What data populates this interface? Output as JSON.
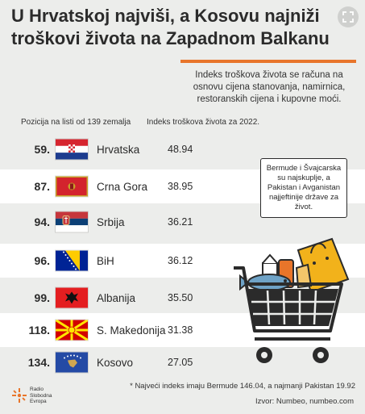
{
  "header": {
    "title": "U Hrvatskoj najviši, a Kosovu najniži troškovi života na Zapadnom Balkanu",
    "description": "Indeks troškova života se računa na osnovu cijena stanovanja, namirnica, restoranskih cijena i kupovne moći.",
    "expand_icon": "expand-icon",
    "accent_color": "#e8752a"
  },
  "columns": {
    "rank_header": "Pozicija na listi od 139 zemalja",
    "index_header": "Indeks troškova života za 2022."
  },
  "chart_data": {
    "type": "table",
    "title": "U Hrvatskoj najviši, a Kosovu najniži troškovi života na Zapadnom Balkanu",
    "columns": [
      "Pozicija na listi od 139 zemalja",
      "Indeks troškova života za 2022."
    ],
    "rows": [
      {
        "rank": "59.",
        "country": "Hrvatska",
        "flag": "croatia-flag",
        "index": "48.94"
      },
      {
        "rank": "87.",
        "country": "Crna Gora",
        "flag": "montenegro-flag",
        "index": "38.95"
      },
      {
        "rank": "94.",
        "country": "Srbija",
        "flag": "serbia-flag",
        "index": "36.21"
      },
      {
        "rank": "96.",
        "country": "BiH",
        "flag": "bih-flag",
        "index": "36.12"
      },
      {
        "rank": "99.",
        "country": "Albanija",
        "flag": "albania-flag",
        "index": "35.50"
      },
      {
        "rank": "118.",
        "country": "S. Makedonija",
        "flag": "north-macedonia-flag",
        "index": "31.38"
      },
      {
        "rank": "134.",
        "country": "Kosovo",
        "flag": "kosovo-flag",
        "index": "27.05"
      }
    ]
  },
  "callout": {
    "text": "Bermude i Švajcarska su najskuplje, a Pakistan i Avganistan najjeftinije države za život."
  },
  "footer": {
    "footnote": "* Najveći indeks imaju Bermude 146.04, a najmanji Pakistan 19.92",
    "source": "Izvor: Numbeo, numbeo.com",
    "logo_text": "Radio Slobodna Evropa"
  }
}
